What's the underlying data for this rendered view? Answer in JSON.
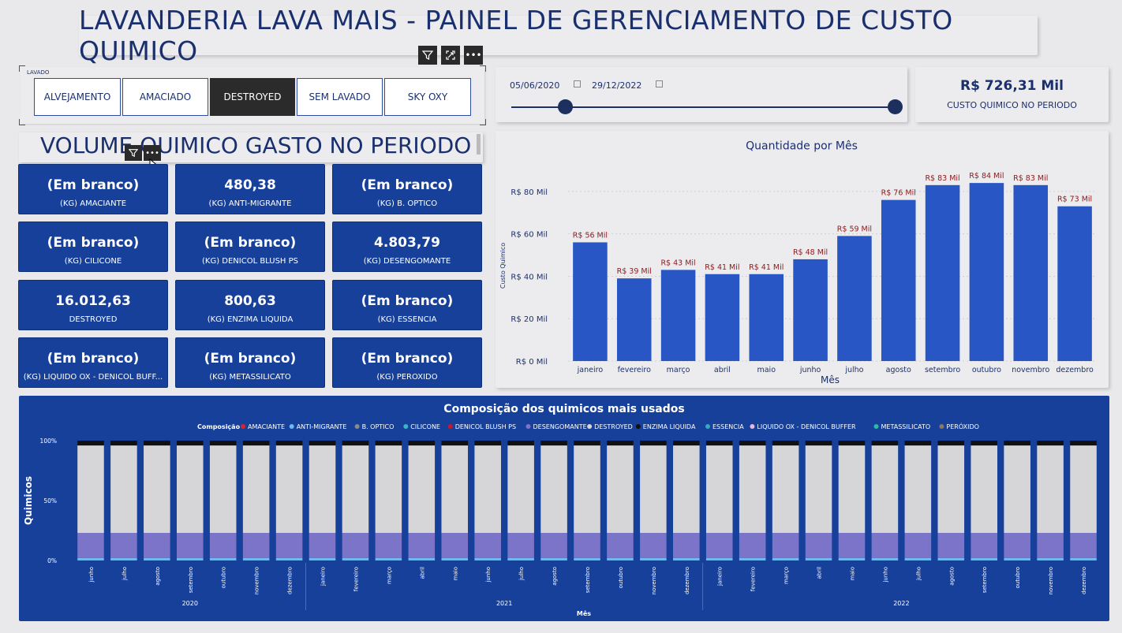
{
  "header": {
    "title": "LAVANDERIA LAVA MAIS - PAINEL DE GERENCIAMENTO DE CUSTO QUIMICO"
  },
  "slicer": {
    "label": "LAVADO",
    "options": [
      "ALVEJAMENTO",
      "AMACIADO",
      "DESTROYED",
      "SEM LAVADO",
      "SKY OXY"
    ],
    "selected": "DESTROYED"
  },
  "toolbar": {
    "filter_icon": "filter-icon",
    "focus_icon": "focus-mode-icon",
    "more_icon": "more-options-icon",
    "more_label": "•••"
  },
  "date_range": {
    "start": "05/06/2020",
    "end": "29/12/2022"
  },
  "kpi": {
    "value": "R$ 726,31 Mil",
    "label": "CUSTO QUIMICO NO PERIODO"
  },
  "volume": {
    "title": "VOLUME QUIMICO GASTO NO PERIODO"
  },
  "cards": [
    {
      "value": "(Em branco)",
      "label": "(KG) AMACIANTE"
    },
    {
      "value": "480,38",
      "label": "(KG) ANTI-MIGRANTE"
    },
    {
      "value": "(Em branco)",
      "label": "(KG) B. OPTICO"
    },
    {
      "value": "(Em branco)",
      "label": "(KG) CILICONE"
    },
    {
      "value": "(Em branco)",
      "label": "(KG) DENICOL BLUSH PS"
    },
    {
      "value": "4.803,79",
      "label": "(KG) DESENGOMANTE"
    },
    {
      "value": "16.012,63",
      "label": "DESTROYED"
    },
    {
      "value": "800,63",
      "label": "(KG) ENZIMA LIQUIDA"
    },
    {
      "value": "(Em branco)",
      "label": "(KG) ESSENCIA"
    },
    {
      "value": "(Em branco)",
      "label": "(KG) LIQUIDO OX - DENICOL BUFF..."
    },
    {
      "value": "(Em branco)",
      "label": "(KG) METASSILICATO"
    },
    {
      "value": "(Em branco)",
      "label": "(KG) PERÓXIDO"
    }
  ],
  "chart_data": [
    {
      "type": "bar",
      "title": "Quantidade por Mês",
      "xlabel": "Mês",
      "ylabel": "Custo Quimico",
      "ylim": [
        0,
        90
      ],
      "yticks": [
        0,
        20,
        40,
        60,
        80
      ],
      "ytick_labels": [
        "R$ 0 Mil",
        "R$ 20 Mil",
        "R$ 40 Mil",
        "R$ 60 Mil",
        "R$ 80 Mil"
      ],
      "categories": [
        "janeiro",
        "fevereiro",
        "março",
        "abril",
        "maio",
        "junho",
        "julho",
        "agosto",
        "setembro",
        "outubro",
        "novembro",
        "dezembro"
      ],
      "values": [
        56,
        39,
        43,
        41,
        41,
        48,
        59,
        76,
        83,
        84,
        83,
        73
      ],
      "data_labels": [
        "R$ 56 Mil",
        "R$ 39 Mil",
        "R$ 43 Mil",
        "R$ 41 Mil",
        "R$ 41 Mil",
        "R$ 48 Mil",
        "R$ 59 Mil",
        "R$ 76 Mil",
        "R$ 83 Mil",
        "R$ 84 Mil",
        "R$ 83 Mil",
        "R$ 73 Mil"
      ],
      "grid": true,
      "colors": {
        "bar": "#2857c5",
        "label": "#8b1a1a",
        "axis_text": "#1a2f6e"
      }
    },
    {
      "type": "bar",
      "stacked": "percent",
      "title": "Composição dos quimicos mais usados",
      "xlabel": "Mês",
      "ylabel": "Quimicos",
      "legend_title": "Composição",
      "legend_position": "top",
      "ytick_labels": [
        "0%",
        "50%",
        "100%"
      ],
      "categories": [
        "junho",
        "julho",
        "agosto",
        "setembro",
        "outubro",
        "novembro",
        "dezembro",
        "janeiro",
        "fevereiro",
        "março",
        "abril",
        "maio",
        "junho",
        "julho",
        "agosto",
        "setembro",
        "outubro",
        "novembro",
        "dezembro",
        "janeiro",
        "fevereiro",
        "março",
        "abril",
        "maio",
        "junho",
        "julho",
        "agosto",
        "setembro",
        "outubro",
        "novembro",
        "dezembro"
      ],
      "groups": [
        {
          "label": "2020",
          "count": 7
        },
        {
          "label": "2021",
          "count": 12
        },
        {
          "label": "2022",
          "count": 12
        }
      ],
      "series": [
        {
          "name": "AMACIANTE",
          "color": "#d62728",
          "value": 0
        },
        {
          "name": "ANTI-MIGRANTE",
          "color": "#6db8f2",
          "value": 2
        },
        {
          "name": "B. OPTICO",
          "color": "#8a8a8a",
          "value": 0
        },
        {
          "name": "CILICONE",
          "color": "#3cb4c8",
          "value": 0
        },
        {
          "name": "DENICOL BLUSH PS",
          "color": "#c0182d",
          "value": 0
        },
        {
          "name": "DESENGOMANTE",
          "color": "#7b74c9",
          "value": 21
        },
        {
          "name": "DESTROYED",
          "color": "#d6d6d8",
          "value": 73
        },
        {
          "name": "ENZIMA LIQUIDA",
          "color": "#111111",
          "value": 4
        },
        {
          "name": "ESSENCIA",
          "color": "#3aa6c4",
          "value": 0
        },
        {
          "name": "LIQUIDO OX - DENICOL BUFFER",
          "color": "#e9b7d8",
          "value": 0
        },
        {
          "name": "METASSILICATO",
          "color": "#2fb7a8",
          "value": 0
        },
        {
          "name": "PERÓXIDO",
          "color": "#8a7a5a",
          "value": 0
        }
      ]
    }
  ]
}
